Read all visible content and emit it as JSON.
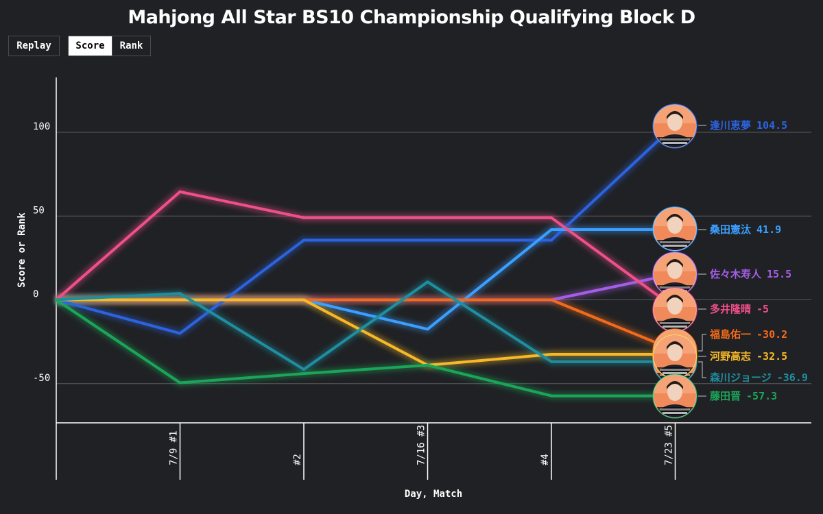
{
  "title": "Mahjong All Star BS10 Championship Qualifying Block D",
  "controls": {
    "replay": "Replay",
    "score": "Score",
    "rank": "Rank",
    "active": "score"
  },
  "chart_data": {
    "type": "line",
    "title": "Mahjong All Star BS10 Championship Qualifying Block D",
    "xlabel": "Day, Match",
    "ylabel": "Score or Rank",
    "x": [
      "",
      "7/9 #1",
      "#2",
      "7/16 #3",
      "#4",
      "7/23 #5"
    ],
    "yticks": [
      100,
      50,
      0,
      -50
    ],
    "ylim": [
      -73,
      133
    ],
    "grid": true,
    "series": [
      {
        "name": "逢川恵夢",
        "color": "#2b63e0",
        "values": [
          0,
          -20,
          35.6,
          35.6,
          35.6,
          104.5
        ],
        "final_label": "104.5"
      },
      {
        "name": "桑田憲汰",
        "color": "#3a9fff",
        "values": [
          0,
          0,
          0,
          -17.5,
          41.9,
          41.9
        ],
        "final_label": "41.9"
      },
      {
        "name": "佐々木寿人",
        "color": "#a55ee6",
        "values": [
          0,
          0,
          0,
          0,
          0,
          15.5
        ],
        "final_label": "15.5"
      },
      {
        "name": "多井隆晴",
        "color": "#f0508a",
        "values": [
          0,
          64.5,
          49,
          49,
          49,
          -5
        ],
        "final_label": "-5"
      },
      {
        "name": "福島佑一",
        "color": "#f26a1b",
        "values": [
          0,
          0,
          0,
          0,
          0,
          -30.2
        ],
        "final_label": "-30.2"
      },
      {
        "name": "河野高志",
        "color": "#f7b928",
        "values": [
          0,
          0,
          0,
          -39,
          -32.5,
          -32.5
        ],
        "final_label": "-32.5"
      },
      {
        "name": "森川ジョージ",
        "color": "#1e8fa0",
        "values": [
          0,
          3.8,
          -41.5,
          10.7,
          -36.9,
          -36.9
        ],
        "final_label": "-36.9"
      },
      {
        "name": "藤田晋",
        "color": "#1aa659",
        "values": [
          0,
          -49.5,
          -44,
          -39,
          -57.3,
          -57.3
        ],
        "final_label": "-57.3"
      }
    ],
    "legend_placement": "right-end"
  }
}
